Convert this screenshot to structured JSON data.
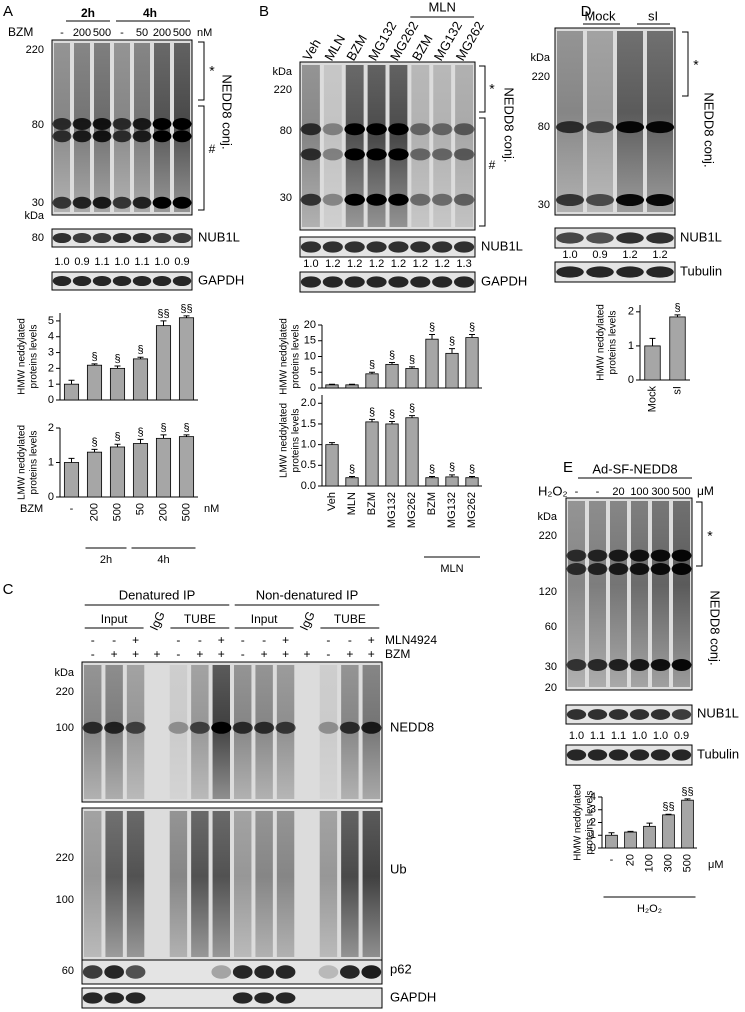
{
  "panels": {
    "A": {
      "label": "A",
      "time_labels": [
        "2h",
        "4h"
      ],
      "treatment": "BZM",
      "doses": [
        "-",
        "200",
        "500",
        "-",
        "50",
        "200",
        "500"
      ],
      "unit": "nM",
      "kda": "kDa",
      "markers": [
        "220",
        "80",
        "30"
      ],
      "asterisk": "*",
      "hash": "#",
      "conj": "NEDD8 conj.",
      "nub_marker": "80",
      "nub": "NUB1L",
      "ratios": [
        "1.0",
        "0.9",
        "1.1",
        "1.0",
        "1.1",
        "1.0",
        "0.9"
      ],
      "loading": "GAPDH"
    },
    "B": {
      "label": "B",
      "lanes": [
        "Veh",
        "MLN",
        "BZM",
        "MG132",
        "MG262",
        "BZM",
        "MG132",
        "MG262"
      ],
      "group": "MLN",
      "kda": "kDa",
      "markers": [
        "220",
        "80",
        "30"
      ],
      "asterisk": "*",
      "hash": "#",
      "conj": "NEDD8 conj.",
      "nub": "NUB1L",
      "ratios": [
        "1.0",
        "1.2",
        "1.2",
        "1.2",
        "1.2",
        "1.2",
        "1.2",
        "1.3"
      ],
      "loading": "GAPDH"
    },
    "C": {
      "label": "C",
      "groups": [
        "Denatured IP",
        "Non-denatured IP"
      ],
      "subgroups": [
        "Input",
        "IgG",
        "TUBE",
        "Input",
        "IgG",
        "TUBE"
      ],
      "rows": [
        {
          "name": "MLN4924",
          "signs": [
            "-",
            "-",
            "+",
            null,
            "-",
            "-",
            "+",
            "-",
            "-",
            "+",
            null,
            "-",
            "-",
            "+"
          ]
        },
        {
          "name": "BZM",
          "signs": [
            "-",
            "+",
            "+",
            "+",
            "-",
            "+",
            "+",
            "-",
            "+",
            "+",
            "+",
            "-",
            "+",
            "+"
          ]
        }
      ],
      "kda": "kDa",
      "nedd8_markers": [
        "220",
        "100"
      ],
      "ub_markers": [
        "220",
        "100"
      ],
      "p62_markers": [
        "60"
      ],
      "blots": [
        "NEDD8",
        "Ub",
        "p62",
        "GAPDH"
      ]
    },
    "D": {
      "label": "D",
      "lanes": [
        "Mock",
        "sI"
      ],
      "kda": "kDa",
      "markers": [
        "220",
        "80",
        "30"
      ],
      "asterisk": "*",
      "conj": "NEDD8 conj.",
      "nub": "NUB1L",
      "ratios": [
        "1.0",
        "0.9",
        "1.2",
        "1.2"
      ],
      "loading": "Tubulin"
    },
    "E": {
      "label": "E",
      "construct": "Ad-SF-NEDD8",
      "treatment": "H₂O₂",
      "doses": [
        "-",
        "-",
        "20",
        "100",
        "300",
        "500"
      ],
      "unit": "μM",
      "kda": "kDa",
      "markers": [
        "220",
        "120",
        "60",
        "30",
        "20"
      ],
      "asterisk": "*",
      "conj": "NEDD8 conj.",
      "nub": "NUB1L",
      "ratios": [
        "1.0",
        "1.1",
        "1.1",
        "1.0",
        "1.0",
        "0.9"
      ],
      "loading": "Tubulin"
    }
  },
  "chart_data": [
    {
      "type": "bar",
      "y_label": [
        "HMW neddylated",
        "proteins levels"
      ],
      "values": [
        1.0,
        2.2,
        2.0,
        2.6,
        4.7,
        5.2
      ],
      "errors": [
        0.25,
        0.08,
        0.15,
        0.1,
        0.3,
        0.12
      ],
      "annotations": [
        null,
        "§",
        "§",
        "§",
        "§§",
        "§§"
      ],
      "color": "#a6a6a6",
      "ylim": [
        0,
        5.5
      ],
      "yticks": [
        0,
        1,
        2,
        3,
        4,
        5
      ]
    },
    {
      "type": "bar",
      "y_label": [
        "LMW neddylated",
        "proteins levels"
      ],
      "categories": [
        "-",
        "200",
        "500",
        "50",
        "200",
        "500"
      ],
      "values": [
        1.0,
        1.3,
        1.45,
        1.55,
        1.7,
        1.75
      ],
      "errors": [
        0.12,
        0.08,
        0.08,
        0.12,
        0.1,
        0.05
      ],
      "annotations": [
        null,
        "§",
        "§",
        "§",
        "§",
        "§"
      ],
      "color": "#a6a6a6",
      "ylim": [
        0,
        2
      ],
      "yticks": [
        0,
        1,
        2
      ],
      "x_title": "BZM",
      "x_unit": "nM",
      "group_labels": [
        "2h",
        "4h"
      ]
    },
    {
      "type": "bar",
      "y_label": [
        "HMW neddylated",
        "proteins levels"
      ],
      "values": [
        1.0,
        1.0,
        4.5,
        7.5,
        6.2,
        15.5,
        11.0,
        16.0
      ],
      "errors": [
        0.2,
        0.2,
        0.5,
        0.6,
        0.5,
        1.5,
        1.5,
        1.0
      ],
      "annotations": [
        null,
        null,
        "§",
        "§",
        "§",
        "§",
        "§",
        "§"
      ],
      "color": "#a6a6a6",
      "ylim": [
        0,
        20
      ],
      "yticks": [
        0,
        5,
        10,
        15,
        20
      ]
    },
    {
      "type": "bar",
      "y_label": [
        "LMW neddylated",
        "proteins levels"
      ],
      "categories": [
        "Veh",
        "MLN",
        "BZM",
        "MG132",
        "MG262",
        "BZM",
        "MG132",
        "MG262"
      ],
      "values": [
        1.0,
        0.2,
        1.55,
        1.5,
        1.65,
        0.2,
        0.22,
        0.2
      ],
      "errors": [
        0.05,
        0.03,
        0.06,
        0.06,
        0.05,
        0.03,
        0.05,
        0.03
      ],
      "annotations": [
        null,
        "§",
        "§",
        "§",
        "§",
        "§",
        "§",
        "§"
      ],
      "color": "#a6a6a6",
      "ylim": [
        0,
        2.2
      ],
      "yticks": [
        {
          "value": 0,
          "label": "0.0"
        },
        0.5,
        {
          "value": 1,
          "label": "1.0"
        },
        1.5,
        {
          "value": 2,
          "label": "2.0"
        }
      ],
      "group_labels": [
        "MLN"
      ]
    },
    {
      "type": "bar",
      "y_label": [
        "HMW neddylated",
        "proteins levels"
      ],
      "categories": [
        "Mock",
        "sI"
      ],
      "values": [
        1.0,
        1.85
      ],
      "errors": [
        0.22,
        0.06
      ],
      "annotations": [
        null,
        "§"
      ],
      "color": "#a6a6a6",
      "ylim": [
        0,
        2.2
      ],
      "yticks": [
        0,
        1,
        2
      ]
    },
    {
      "type": "bar",
      "y_label": [
        "HMW neddylated",
        "proteins levels"
      ],
      "categories": [
        "-",
        "20",
        "100",
        "300",
        "500"
      ],
      "values": [
        1.0,
        1.25,
        1.7,
        2.6,
        3.75
      ],
      "errors": [
        0.2,
        0.05,
        0.25,
        0.05,
        0.1
      ],
      "annotations": [
        null,
        null,
        null,
        "§§",
        "§§"
      ],
      "color": "#a6a6a6",
      "ylim": [
        0,
        4
      ],
      "yticks": [
        0,
        1,
        2,
        3,
        4
      ],
      "x_title": "H₂O₂",
      "x_unit": "μM"
    }
  ]
}
